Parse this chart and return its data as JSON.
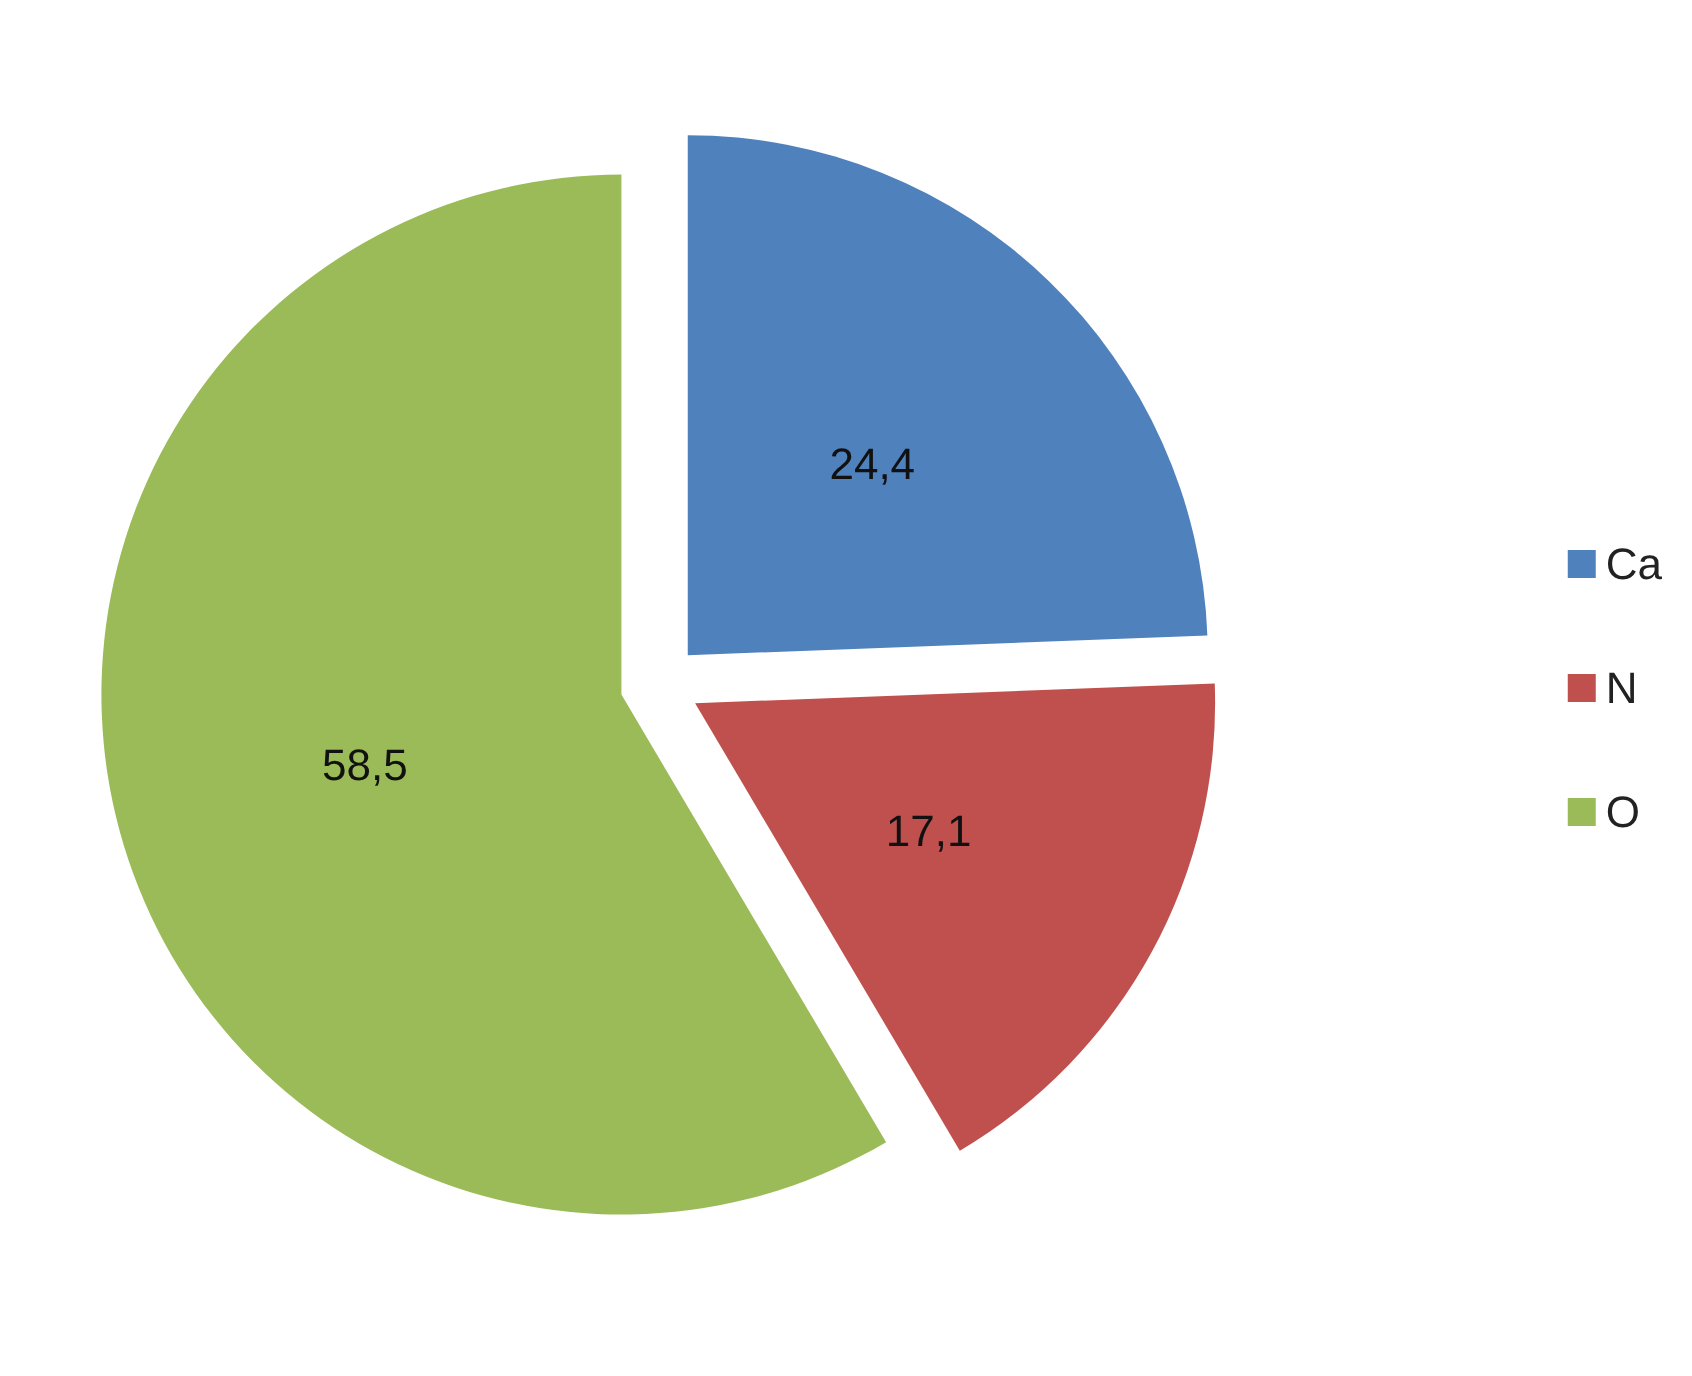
{
  "chart_data": {
    "type": "pie",
    "categories": [
      "Ca",
      "N",
      "O"
    ],
    "values": [
      24.4,
      17.1,
      58.5
    ],
    "colors": [
      "#4f81bd",
      "#c0504d",
      "#9bbb59"
    ],
    "value_labels": [
      "24,4",
      "17,1",
      "58,5"
    ],
    "legend": "right"
  }
}
